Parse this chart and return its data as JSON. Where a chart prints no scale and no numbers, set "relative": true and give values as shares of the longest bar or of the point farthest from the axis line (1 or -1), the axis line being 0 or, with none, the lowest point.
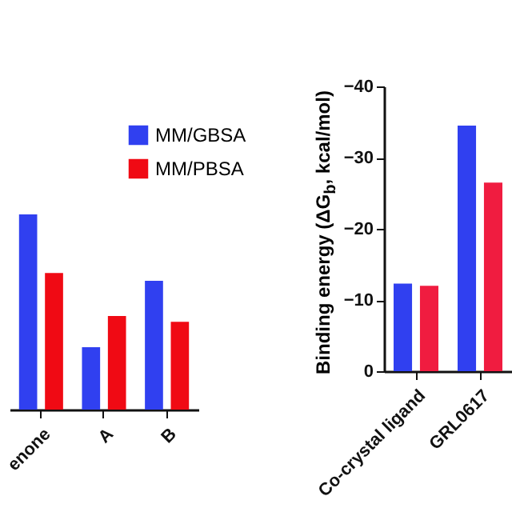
{
  "chart_data": [
    {
      "type": "bar",
      "relative": true,
      "categories": [
        "enone",
        "A",
        "B"
      ],
      "legend": "top right",
      "series": [
        {
          "name": "MM/GBSA",
          "color": "#3040f0",
          "values": [
            1,
            0.32,
            0.66
          ]
        },
        {
          "name": "MM/PBSA",
          "color": "#f00a14",
          "values": [
            0.7,
            0.48,
            0.45
          ]
        }
      ]
    },
    {
      "type": "bar",
      "ylabel": "Binding energy (ΔG$_{b}$, kcal/mol)",
      "categories": [
        "Co-crystal ligand",
        "GRL0617"
      ],
      "ylim": [
        0,
        -40
      ],
      "yticks": [
        0,
        -10,
        -20,
        -30,
        -40
      ],
      "series": [
        {
          "color": "#3040f0",
          "values": [
            -12.3,
            -34.5
          ]
        },
        {
          "color": "#f01c40",
          "values": [
            -12,
            -26.5
          ]
        }
      ]
    }
  ]
}
